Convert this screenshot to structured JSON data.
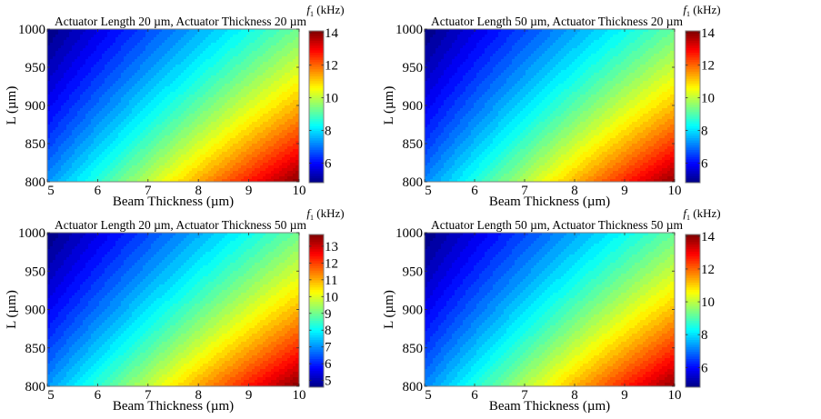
{
  "figure": {
    "description": "Filled contour maps of first resonant frequency f1 vs beam thickness and beam length L"
  },
  "chart_data": [
    {
      "type": "heatmap",
      "panel": "top-left",
      "title": "Actuator Length 20 µm, Actuator Thickness 20 µm",
      "xlabel": "Beam Thickness (µm)",
      "ylabel": "L (µm)",
      "colorbar_label": "f1 (kHz)",
      "xlim": [
        5,
        10
      ],
      "ylim": [
        800,
        1000
      ],
      "xticks": [
        5,
        6,
        7,
        8,
        9,
        10
      ],
      "yticks": [
        800,
        850,
        900,
        950,
        1000
      ],
      "colorbar_ticks": [
        6,
        8,
        10,
        12,
        14
      ],
      "clim": [
        4.8,
        14.1
      ],
      "colormap": "jet",
      "corner_values": {
        "x5_L1000": 4.8,
        "x5_L800": 7.3,
        "x10_L1000": 9.3,
        "x10_L800": 14.1
      }
    },
    {
      "type": "heatmap",
      "panel": "top-right",
      "title": "Actuator Length 50 µm, Actuator Thickness 20 µm",
      "xlabel": "Beam Thickness (µm)",
      "ylabel": "L (µm)",
      "colorbar_label": "f1 (kHz)",
      "xlim": [
        5,
        10
      ],
      "ylim": [
        800,
        1000
      ],
      "xticks": [
        5,
        6,
        7,
        8,
        9,
        10
      ],
      "yticks": [
        800,
        850,
        900,
        950,
        1000
      ],
      "colorbar_ticks": [
        6,
        8,
        10,
        12,
        14
      ],
      "clim": [
        4.8,
        14.1
      ],
      "colormap": "jet",
      "corner_values": {
        "x5_L1000": 4.8,
        "x5_L800": 7.2,
        "x10_L1000": 9.2,
        "x10_L800": 14.0
      }
    },
    {
      "type": "heatmap",
      "panel": "bottom-left",
      "title": "Actuator Length 20 µm, Actuator Thickness 50 µm",
      "xlabel": "Beam Thickness (µm)",
      "ylabel": "L (µm)",
      "colorbar_label": "f1 (kHz)",
      "xlim": [
        5,
        10
      ],
      "ylim": [
        800,
        1000
      ],
      "xticks": [
        5,
        6,
        7,
        8,
        9,
        10
      ],
      "yticks": [
        800,
        850,
        900,
        950,
        1000
      ],
      "colorbar_ticks": [
        5,
        6,
        7,
        8,
        9,
        10,
        11,
        12,
        13
      ],
      "clim": [
        4.6,
        13.7
      ],
      "colormap": "jet",
      "corner_values": {
        "x5_L1000": 4.6,
        "x5_L800": 7.1,
        "x10_L1000": 9.0,
        "x10_L800": 13.7
      }
    },
    {
      "type": "heatmap",
      "panel": "bottom-right",
      "title": "Actuator Length 50 µm, Actuator Thickness 50 µm",
      "xlabel": "Beam Thickness (µm)",
      "ylabel": "L (µm)",
      "colorbar_label": "f1 (kHz)",
      "xlim": [
        5,
        10
      ],
      "ylim": [
        800,
        1000
      ],
      "xticks": [
        5,
        6,
        7,
        8,
        9,
        10
      ],
      "yticks": [
        800,
        850,
        900,
        950,
        1000
      ],
      "colorbar_ticks": [
        6,
        8,
        10,
        12,
        14
      ],
      "clim": [
        4.8,
        14.1
      ],
      "colormap": "jet",
      "corner_values": {
        "x5_L1000": 4.8,
        "x5_L800": 7.2,
        "x10_L1000": 9.2,
        "x10_L800": 14.0
      }
    }
  ]
}
